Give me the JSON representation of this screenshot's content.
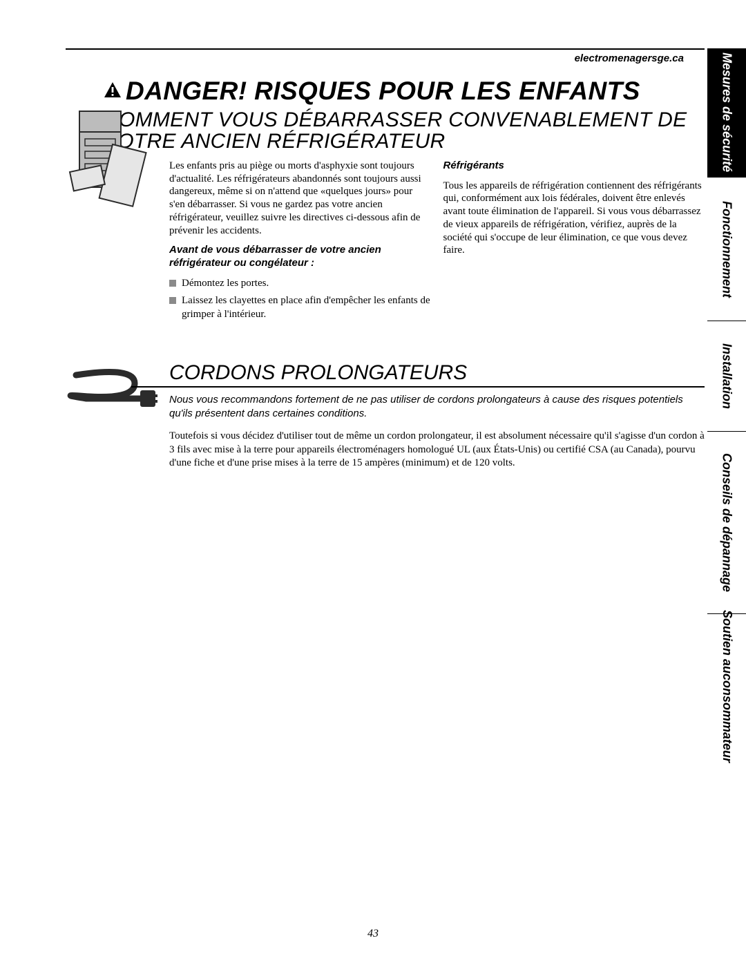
{
  "url": "electromenagersge.ca",
  "danger_heading": "DANGER! RISQUES POUR LES ENFANTS",
  "disposal_heading": "COMMENT VOUS DÉBARRASSER CONVENABLEMENT DE VOTRE ANCIEN RÉFRIGÉRATEUR",
  "section1": {
    "intro": "Les enfants pris au piège ou morts d'asphyxie sont toujours d'actualité. Les réfrigérateurs abandonnés sont toujours aussi dangereux, même si on n'attend que «quelques jours» pour s'en débarrasser. Si vous ne gardez pas votre ancien réfrigérateur, veuillez suivre les directives ci-dessous afin de prévenir les accidents.",
    "before_label": "Avant de vous débarrasser de votre ancien réfrigérateur ou congélateur :",
    "bullets": [
      "Démontez les portes.",
      "Laissez les clayettes en place afin d'empêcher les enfants de grimper à l'intérieur."
    ],
    "refrig_label": "Réfrigérants",
    "refrig_text": "Tous les appareils de réfrigération contiennent des réfrigérants qui, conformément aux lois fédérales, doivent être enlevés avant toute élimination de l'appareil. Si vous vous débarrassez de vieux appareils de réfrigération, vérifiez, auprès de la société qui s'occupe de leur élimination, ce que vous devez faire."
  },
  "section2": {
    "heading": "CORDONS PROLONGATEURS",
    "intro": "Nous vous recommandons fortement de ne pas utiliser de cordons prolongateurs à cause des risques potentiels qu'ils présentent dans certaines conditions.",
    "body": "Toutefois si vous décidez d'utiliser tout de même un cordon prolongateur, il est absolument nécessaire qu'il s'agisse d'un cordon à 3 fils avec mise à la terre pour appareils électroménagers homologué UL (aux États-Unis) ou certifié CSA (au Canada), pourvu d'une fiche et d'une prise mises à la terre de 15 ampères (minimum) et de 120 volts."
  },
  "tabs": {
    "t1": "Mesures de sécurité",
    "t2": "Fonctionnement",
    "t3": "Installation",
    "t4": "Conseils de dépannage",
    "t5a": "Soutien au",
    "t5b": "consommateur",
    "heights": {
      "t1": 186,
      "t2": 208,
      "t3": 160,
      "t4": 264,
      "t5": 210
    },
    "active_bg": "#000000",
    "active_fg": "#ffffff"
  },
  "page_number": "43",
  "colors": {
    "text": "#000000",
    "bullet": "#8a8a8a",
    "illus_gray": "#9c9c9c",
    "illus_dark": "#2b2b2b"
  }
}
